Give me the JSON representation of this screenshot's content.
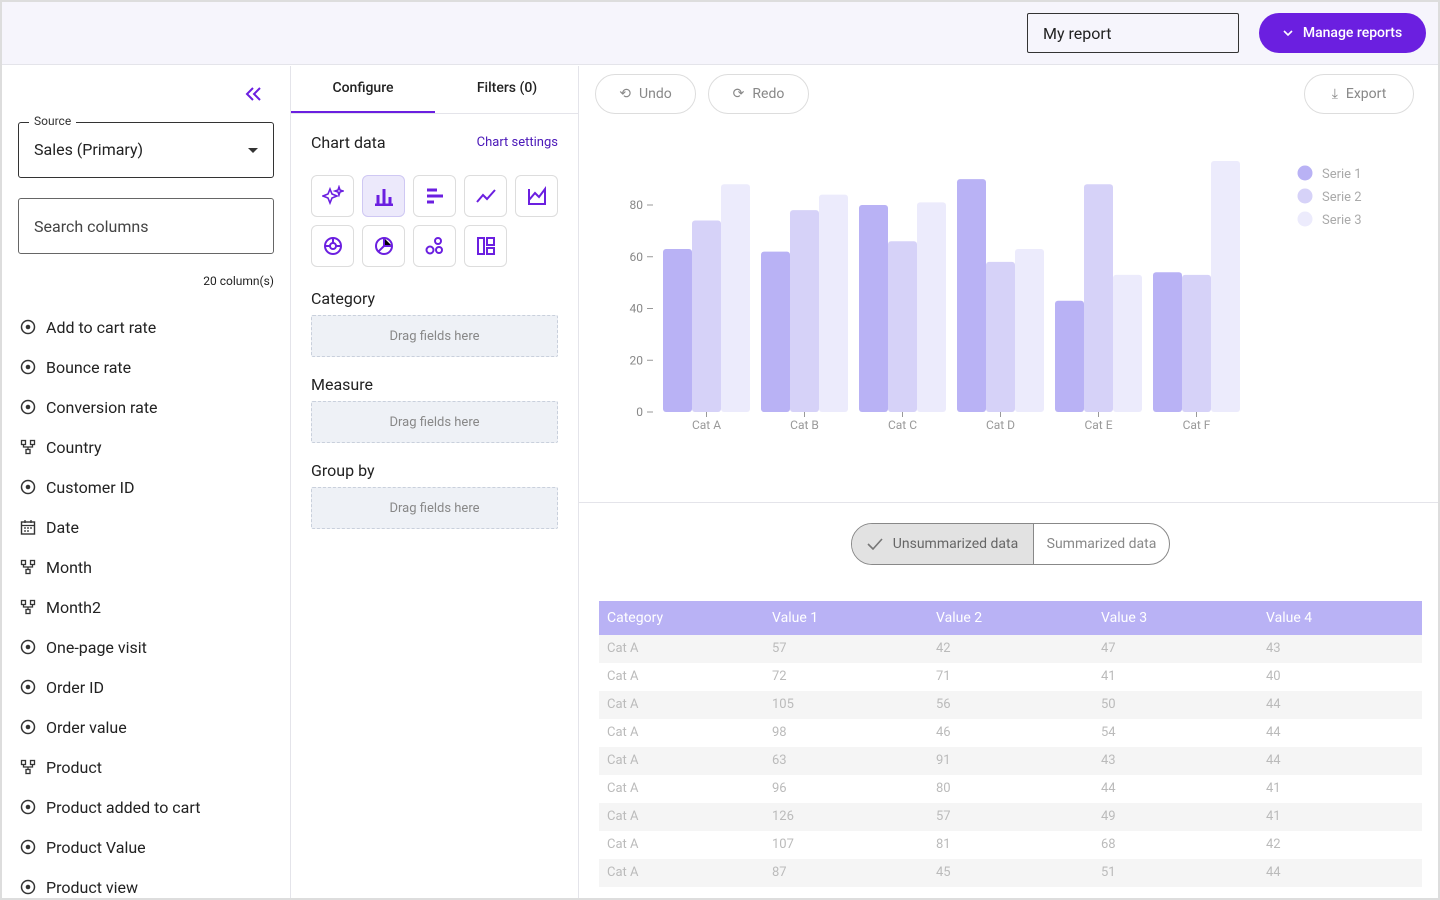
{
  "header": {
    "report_name": "My report",
    "manage_button": "Manage reports"
  },
  "sidebar": {
    "source_label": "Source",
    "source_value": "Sales (Primary)",
    "search_placeholder": "Search columns",
    "column_count": "20 column(s)",
    "columns": [
      {
        "label": "Add to cart rate",
        "icon": "measure"
      },
      {
        "label": "Bounce rate",
        "icon": "measure"
      },
      {
        "label": "Conversion rate",
        "icon": "measure"
      },
      {
        "label": "Country",
        "icon": "dimension"
      },
      {
        "label": "Customer ID",
        "icon": "measure"
      },
      {
        "label": "Date",
        "icon": "date"
      },
      {
        "label": "Month",
        "icon": "dimension"
      },
      {
        "label": "Month2",
        "icon": "dimension"
      },
      {
        "label": "One-page visit",
        "icon": "measure"
      },
      {
        "label": "Order ID",
        "icon": "measure"
      },
      {
        "label": "Order value",
        "icon": "measure"
      },
      {
        "label": "Product",
        "icon": "dimension"
      },
      {
        "label": "Product added to cart",
        "icon": "measure"
      },
      {
        "label": "Product Value",
        "icon": "measure"
      },
      {
        "label": "Product view",
        "icon": "measure"
      }
    ]
  },
  "config": {
    "tabs": [
      "Configure",
      "Filters (0)"
    ],
    "chart_data_label": "Chart data",
    "chart_settings": "Chart settings",
    "sections": [
      {
        "title": "Category",
        "placeholder": "Drag fields here"
      },
      {
        "title": "Measure",
        "placeholder": "Drag fields here"
      },
      {
        "title": "Group by",
        "placeholder": "Drag fields here"
      }
    ]
  },
  "toolbar": {
    "undo": "Undo",
    "redo": "Redo",
    "export": "Export"
  },
  "chart_data": {
    "type": "bar",
    "categories": [
      "Cat A",
      "Cat B",
      "Cat C",
      "Cat D",
      "Cat E",
      "Cat F"
    ],
    "series": [
      {
        "name": "Serie 1",
        "color": "#b9b2f5",
        "values": [
          63,
          62,
          80,
          90,
          43,
          54
        ]
      },
      {
        "name": "Serie 2",
        "color": "#d6d2f8",
        "values": [
          74,
          78,
          66,
          58,
          88,
          53
        ]
      },
      {
        "name": "Serie 3",
        "color": "#ecebfc",
        "values": [
          88,
          84,
          81,
          63,
          53,
          97
        ]
      }
    ],
    "ylim": [
      0,
      100
    ],
    "yticks": [
      0,
      20,
      40,
      60,
      80
    ],
    "legend": "right"
  },
  "data_toggle": [
    "Unsummarized data",
    "Summarized data"
  ],
  "table": {
    "headers": [
      "Category",
      "Value 1",
      "Value 2",
      "Value 3",
      "Value 4"
    ],
    "rows": [
      [
        "Cat A",
        57,
        42,
        47,
        43
      ],
      [
        "Cat A",
        72,
        71,
        41,
        40
      ],
      [
        "Cat A",
        105,
        56,
        50,
        44
      ],
      [
        "Cat A",
        98,
        46,
        54,
        44
      ],
      [
        "Cat A",
        63,
        91,
        43,
        44
      ],
      [
        "Cat A",
        96,
        80,
        44,
        41
      ],
      [
        "Cat A",
        126,
        57,
        49,
        41
      ],
      [
        "Cat A",
        107,
        81,
        68,
        42
      ],
      [
        "Cat A",
        87,
        45,
        51,
        44
      ]
    ]
  }
}
